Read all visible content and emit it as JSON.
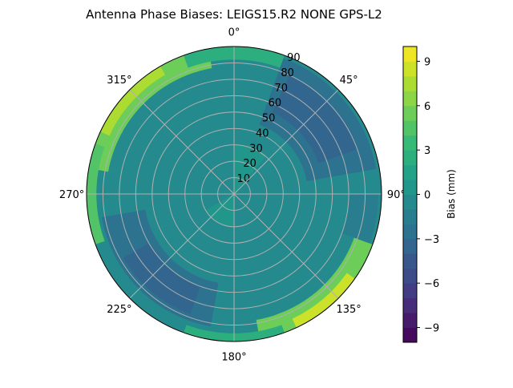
{
  "chart_data": {
    "type": "heatmap",
    "projection": "polar",
    "title": "Antenna Phase Biases: LEIGS15.R2       NONE GPS-L2",
    "colorbar_label": "Bias (mm)",
    "colormap": "viridis",
    "clim": [
      -10,
      10
    ],
    "levels_step": 1,
    "colorbar_ticks": [
      "−9",
      "−6",
      "−3",
      "0",
      "3",
      "6",
      "9"
    ],
    "colorbar_tick_values": [
      -9,
      -6,
      -3,
      0,
      3,
      6,
      9
    ],
    "angle_ticks": [
      "0°",
      "45°",
      "90°",
      "135°",
      "180°",
      "225°",
      "270°",
      "315°"
    ],
    "angle_tick_values": [
      0,
      45,
      90,
      135,
      180,
      225,
      270,
      315
    ],
    "radial_ticks": [
      "10",
      "20",
      "30",
      "40",
      "50",
      "60",
      "70",
      "80",
      "90"
    ],
    "radial_tick_values": [
      10,
      20,
      30,
      40,
      50,
      60,
      70,
      80,
      90
    ],
    "rlim": [
      0,
      90
    ],
    "grid": true,
    "background_bias": -1,
    "regions": [
      {
        "az": [
          20,
          80
        ],
        "zen": [
          45,
          88
        ],
        "bias": -3
      },
      {
        "az": [
          25,
          70
        ],
        "zen": [
          55,
          80
        ],
        "bias": -4
      },
      {
        "az": [
          280,
          350
        ],
        "zen": [
          78,
          90
        ],
        "bias": 5
      },
      {
        "az": [
          295,
          330
        ],
        "zen": [
          84,
          90
        ],
        "bias": 7
      },
      {
        "az": [
          250,
          290
        ],
        "zen": [
          84,
          90
        ],
        "bias": 4
      },
      {
        "az": [
          110,
          170
        ],
        "zen": [
          78,
          90
        ],
        "bias": 5
      },
      {
        "az": [
          125,
          155
        ],
        "zen": [
          84,
          90
        ],
        "bias": 8
      },
      {
        "az": [
          190,
          260
        ],
        "zen": [
          55,
          82
        ],
        "bias": -3
      },
      {
        "az": [
          200,
          240
        ],
        "zen": [
          60,
          78
        ],
        "bias": -4
      },
      {
        "az": [
          340,
          380
        ],
        "zen": [
          82,
          90
        ],
        "bias": 2
      },
      {
        "az": [
          90,
          110
        ],
        "zen": [
          70,
          88
        ],
        "bias": -2
      },
      {
        "az": [
          160,
          200
        ],
        "zen": [
          85,
          90
        ],
        "bias": 2
      },
      {
        "az": [
          0,
          40
        ],
        "zen": [
          0,
          30
        ],
        "bias": 0
      },
      {
        "az": [
          180,
          240
        ],
        "zen": [
          0,
          20
        ],
        "bias": 0
      }
    ]
  }
}
